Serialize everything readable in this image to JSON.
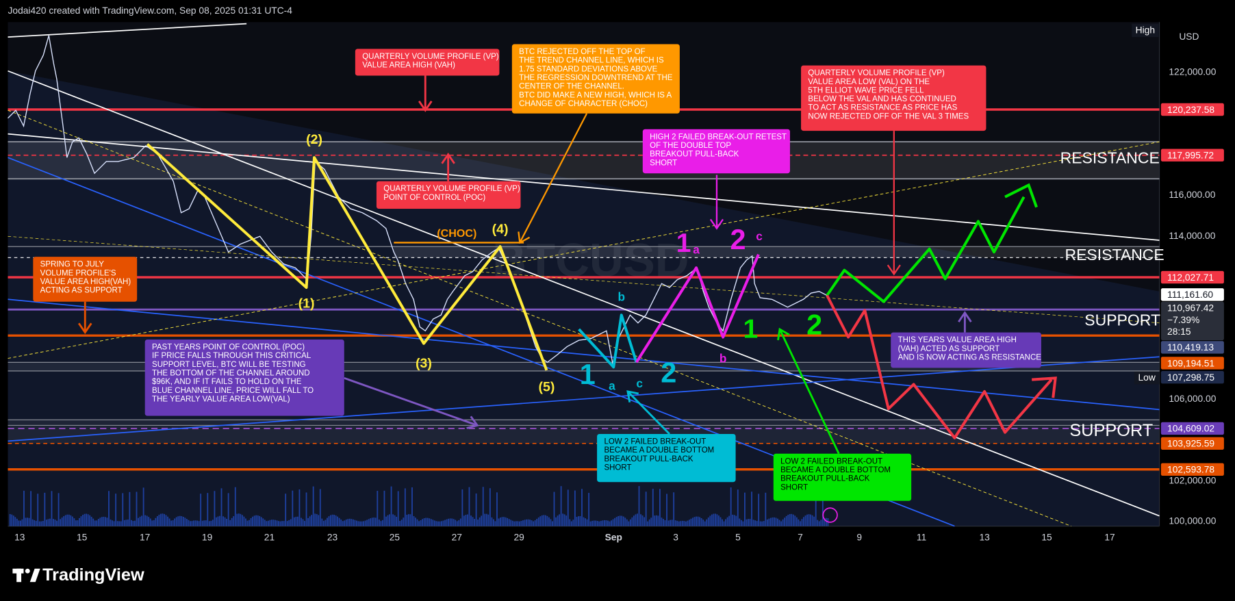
{
  "header": {
    "title": "Jodai420 created with TradingView.com, Sep 08, 2025 01:31 UTC-4"
  },
  "price_axis": {
    "currency": "USD",
    "ticks": [
      "122,000.00",
      "116,000.00",
      "114,000.00",
      "106,000.00",
      "102,000.00",
      "100,000.00"
    ],
    "levels": [
      {
        "label": "120,237.58",
        "color": "#f23645"
      },
      {
        "label": "117,995.72",
        "color": "#f23645"
      },
      {
        "label": "112,027.71",
        "color": "#f23645"
      },
      {
        "label": "111,161.60",
        "color": "#ffffff"
      },
      {
        "label": "110,419.13",
        "color": "#3d4a7a"
      },
      {
        "label": "109,194.51",
        "color": "#e65100"
      },
      {
        "label": "107,298.75",
        "color": "#1e2a4a"
      },
      {
        "label": "104,609.02",
        "color": "#6a3db8"
      },
      {
        "label": "103,925.59",
        "color": "#e65100"
      },
      {
        "label": "102,593.78",
        "color": "#e65100"
      }
    ],
    "last": {
      "price": "110,967.42",
      "change": "−7.39%",
      "countdown": "28:15"
    }
  },
  "time_axis": {
    "labels": [
      "13",
      "15",
      "17",
      "19",
      "21",
      "23",
      "25",
      "27",
      "29",
      "Sep",
      "3",
      "5",
      "7",
      "9",
      "11",
      "13",
      "15",
      "17"
    ]
  },
  "chart": {
    "watermark": "BTCUSD",
    "high": "High",
    "low": "Low"
  },
  "annotations": [
    {
      "color": "#f23645",
      "lines": [
        "QUARTERLY VOLUME PROFILE (VP)",
        "VALUE AREA HIGH (VAH)"
      ]
    },
    {
      "color": "#ff9800",
      "lines": [
        "BTC REJECTED OFF THE TOP OF",
        "THE TREND CHANNEL LINE, WHICH IS",
        "1.75 STANDARD DEVIATIONS ABOVE",
        "THE REGRESSION DOWNTREND AT THE",
        "CENTER OF THE CHANNEL.",
        "BTC DID MAKE A NEW HIGH, WHICH IS A",
        "CHANGE OF CHARACTER (CHOC)"
      ]
    },
    {
      "color": "#f23645",
      "lines": [
        "QUARTERLY VOLUME PROFILE (VP)",
        "VALUE AREA LOW (VAL) ON THE",
        "5TH ELLIOT WAVE PRICE FELL",
        "BELOW THE VAL AND HAS CONTINUED",
        "TO ACT AS RESISTANCE AS PRICE HAS",
        "NOW REJECTED OFF OF THE VAL 3 TIMES"
      ]
    },
    {
      "color": "#e91ee8",
      "lines": [
        "HIGH 2 FAILED BREAK-OUT RETEST",
        "OF THE DOUBLE TOP",
        "BREAKOUT PULL-BACK",
        "SHORT"
      ]
    },
    {
      "color": "#f23645",
      "lines": [
        "QUARTERLY VOLUME PROFILE (VP)",
        "POINT OF CONTROL (POC)"
      ]
    },
    {
      "color": "#e65100",
      "lines": [
        "SPRING TO JULY",
        "VOLUME PROFILE'S",
        "VALUE AREA HIGH(VAH)",
        "ACTING AS SUPPORT"
      ]
    },
    {
      "color": "#673ab7",
      "lines": [
        "PAST YEARS POINT OF CONTROL (POC)",
        "IF PRICE FALLS THROUGH THIS CRITICAL",
        "SUPPORT LEVEL, BTC WILL BE TESTING",
        "THE BOTTOM OF THE CHANNEL AROUND",
        "$96K, AND IF IT FAILS TO HOLD ON THE",
        "BLUE CHANNEL LINE, PRICE WILL FALL TO",
        "THE YEARLY VALUE AREA LOW(VAL)"
      ]
    },
    {
      "color": "#00bcd4",
      "lines": [
        "LOW 2 FAILED BREAK-OUT",
        "BECAME A DOUBLE BOTTOM",
        "BREAKOUT PULL-BACK",
        "SHORT"
      ]
    },
    {
      "color": "#00e600",
      "lines": [
        "LOW 2 FAILED BREAK-OUT",
        "BECAME A DOUBLE BOTTOM",
        "BREAKOUT PULL-BACK",
        "SHORT"
      ]
    },
    {
      "color": "#673ab7",
      "lines": [
        "THIS YEARS VALUE AREA HIGH",
        "(VAH) ACTED AS SUPPORT",
        "AND IS NOW ACTING AS RESISTANCE"
      ]
    }
  ],
  "zones": [
    "RESISTANCE",
    "RESISTANCE",
    "SUPPORT",
    "SUPPORT"
  ],
  "waves": [
    {
      "text": "(2)",
      "color": "#ffeb3b"
    },
    {
      "text": "(1)",
      "color": "#ffeb3b"
    },
    {
      "text": "(3)",
      "color": "#ffeb3b"
    },
    {
      "text": "(4)",
      "color": "#ffeb3b"
    },
    {
      "text": "(5)",
      "color": "#ffeb3b"
    },
    {
      "text": "(CHOC)",
      "color": "#ff9800"
    },
    {
      "text": "1",
      "color": "#00bcd4"
    },
    {
      "text": "a",
      "color": "#00bcd4"
    },
    {
      "text": "b",
      "color": "#00bcd4"
    },
    {
      "text": "c",
      "color": "#00bcd4"
    },
    {
      "text": "2",
      "color": "#00bcd4"
    },
    {
      "text": "1",
      "color": "#e91ee8"
    },
    {
      "text": "a",
      "color": "#e91ee8"
    },
    {
      "text": "2",
      "color": "#e91ee8"
    },
    {
      "text": "c",
      "color": "#e91ee8"
    },
    {
      "text": "b",
      "color": "#e91ee8"
    },
    {
      "text": "1",
      "color": "#00e600"
    },
    {
      "text": "2",
      "color": "#00e600"
    }
  ],
  "footer": {
    "brand": "TradingView"
  }
}
